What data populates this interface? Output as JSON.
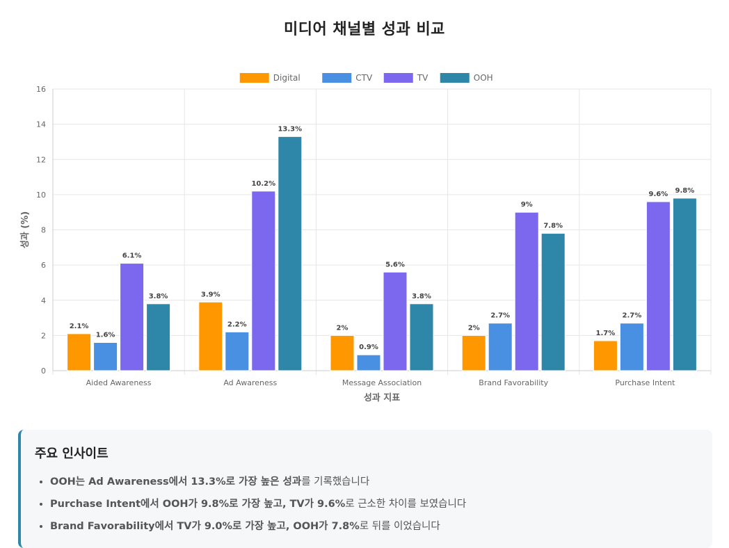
{
  "page": {
    "title": "미디어 채널별 성과 비교"
  },
  "chart_data": {
    "type": "bar",
    "title": "",
    "xlabel": "성과 지표",
    "ylabel": "성과 (%)",
    "ylim": [
      0,
      16
    ],
    "yticks": [
      0,
      2,
      4,
      6,
      8,
      10,
      12,
      14,
      16
    ],
    "grid": true,
    "legend_position": "top",
    "categories": [
      "Aided Awareness",
      "Ad Awareness",
      "Message Association",
      "Brand Favorability",
      "Purchase Intent"
    ],
    "series": [
      {
        "name": "Digital",
        "color": "#ff9800",
        "values": [
          2.1,
          3.9,
          2,
          2,
          1.7
        ],
        "labels": [
          "2.1%",
          "3.9%",
          "2%",
          "2%",
          "1.7%"
        ]
      },
      {
        "name": "CTV",
        "color": "#4a90e2",
        "values": [
          1.6,
          2.2,
          0.9,
          2.7,
          2.7
        ],
        "labels": [
          "1.6%",
          "2.2%",
          "0.9%",
          "2.7%",
          "2.7%"
        ]
      },
      {
        "name": "TV",
        "color": "#7b68ee",
        "values": [
          6.1,
          10.2,
          5.6,
          9,
          9.6
        ],
        "labels": [
          "6.1%",
          "10.2%",
          "5.6%",
          "9%",
          "9.6%"
        ]
      },
      {
        "name": "OOH",
        "color": "#2e86a8",
        "values": [
          3.8,
          13.3,
          3.8,
          7.8,
          9.8
        ],
        "labels": [
          "3.8%",
          "13.3%",
          "3.8%",
          "7.8%",
          "9.8%"
        ]
      }
    ]
  },
  "insights": {
    "title": "주요 인사이트",
    "items": [
      {
        "bold": "OOH는 Ad Awareness에서 13.3%로 가장 높은 성과",
        "rest": "를 기록했습니다"
      },
      {
        "bold": "Purchase Intent에서 OOH가 9.8%로 가장 높고, TV가 9.6%",
        "rest": "로 근소한 차이를 보였습니다"
      },
      {
        "bold": "Brand Favorability에서 TV가 9.0%로 가장 높고, OOH가 7.8%",
        "rest": "로 뒤를 이었습니다"
      }
    ]
  }
}
